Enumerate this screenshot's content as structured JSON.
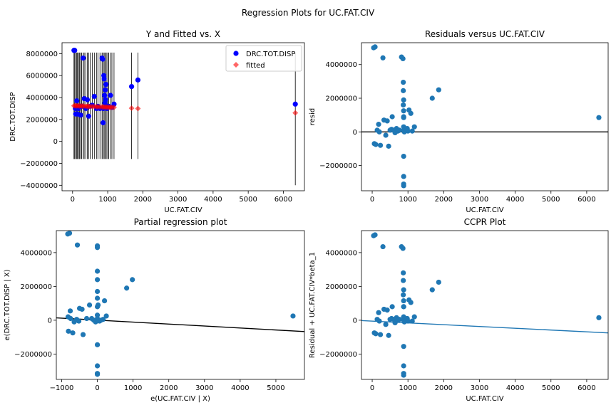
{
  "figure": {
    "suptitle": "Regression Plots for UC.FAT.CIV",
    "colors": {
      "blue": "#1f77b4",
      "pure_blue": "#0000ff",
      "red": "#ff0000",
      "salmon": "#f08080",
      "black": "#000000"
    }
  },
  "chart_data": [
    {
      "id": "yfit",
      "type": "scatter",
      "title": "Y and Fitted vs. X",
      "xlabel": "UC.FAT.CIV",
      "ylabel": "DRC.TOT.DISP",
      "xlim": [
        -300,
        6600
      ],
      "ylim": [
        -4500000,
        9000000
      ],
      "xticks": [
        0,
        1000,
        2000,
        3000,
        4000,
        5000,
        6000
      ],
      "yticks": [
        -4000000,
        -2000000,
        0,
        2000000,
        4000000,
        6000000,
        8000000
      ],
      "legend": {
        "position": "top-right",
        "entries": [
          "DRC.TOT.DISP",
          "fitted"
        ]
      },
      "observed": {
        "name": "DRC.TOT.DISP",
        "x": [
          40,
          60,
          90,
          120,
          80,
          140,
          170,
          200,
          230,
          260,
          300,
          330,
          380,
          420,
          460,
          500,
          560,
          620,
          680,
          720,
          780,
          840,
          860,
          870,
          880,
          890,
          900,
          910,
          920,
          930,
          940,
          950,
          960,
          980,
          1000,
          1030,
          1080,
          1120,
          1180,
          1680,
          1860,
          6340
        ],
        "y": [
          8300000,
          8300000,
          2500000,
          3700000,
          3000000,
          2500000,
          3000000,
          3200000,
          2400000,
          3200000,
          7600000,
          3900000,
          3000000,
          3800000,
          2300000,
          3200000,
          3300000,
          4100000,
          3000000,
          3200000,
          3000000,
          7600000,
          7500000,
          1700000,
          3000000,
          6000000,
          5700000,
          4200000,
          3500000,
          4700000,
          3800000,
          5200000,
          3200000,
          3000000,
          3200000,
          3200000,
          4200000,
          3100000,
          3400000,
          5000000,
          5600000,
          3400000
        ]
      },
      "fitted": {
        "name": "fitted",
        "x": [
          40,
          80,
          120,
          160,
          200,
          240,
          280,
          320,
          380,
          420,
          460,
          500,
          560,
          620,
          680,
          720,
          780,
          840,
          880,
          920,
          960,
          1000,
          1040,
          1080,
          1120,
          1180,
          1680,
          1860,
          6340
        ],
        "y": [
          3250000,
          3250000,
          3240000,
          3240000,
          3230000,
          3230000,
          3220000,
          3220000,
          3210000,
          3200000,
          3200000,
          3190000,
          3180000,
          3180000,
          3170000,
          3160000,
          3150000,
          3140000,
          3140000,
          3130000,
          3130000,
          3120000,
          3110000,
          3110000,
          3100000,
          3100000,
          3030000,
          3000000,
          2600000
        ]
      },
      "intervals": {
        "x": [
          40,
          60,
          90,
          120,
          140,
          170,
          200,
          230,
          260,
          300,
          330,
          380,
          420,
          460,
          500,
          560,
          620,
          680,
          720,
          780,
          840,
          870,
          900,
          930,
          960,
          1000,
          1030,
          1080,
          1120,
          1180,
          1680,
          1860,
          6340
        ],
        "low": -1600000,
        "high": 8100000,
        "low_last": -4000000,
        "high_last": 8100000
      }
    },
    {
      "id": "resid",
      "type": "scatter",
      "title": "Residuals versus UC.FAT.CIV",
      "xlabel": "UC.FAT.CIV",
      "ylabel": "resid",
      "xlim": [
        -300,
        6600
      ],
      "ylim": [
        -3500000,
        5300000
      ],
      "xticks": [
        0,
        1000,
        2000,
        3000,
        4000,
        5000,
        6000
      ],
      "yticks": [
        -2000000,
        0,
        2000000,
        4000000
      ],
      "hline": 0,
      "points": {
        "x": [
          40,
          80,
          60,
          100,
          140,
          180,
          200,
          230,
          300,
          330,
          380,
          420,
          460,
          500,
          540,
          560,
          600,
          640,
          680,
          720,
          760,
          820,
          860,
          870,
          870,
          870,
          880,
          880,
          880,
          880,
          880,
          880,
          880,
          880,
          880,
          880,
          900,
          940,
          980,
          1000,
          1030,
          1080,
          1120,
          1180,
          1680,
          1860,
          6340
        ],
        "y": [
          5000000,
          5050000,
          -700000,
          -750000,
          100000,
          450000,
          0,
          -800000,
          4400000,
          700000,
          -200000,
          650000,
          -850000,
          100000,
          150000,
          900000,
          100000,
          -50000,
          200000,
          50000,
          100000,
          4450000,
          4350000,
          2950000,
          2450000,
          1600000,
          1250000,
          850000,
          300000,
          100000,
          -1450000,
          -2650000,
          -3100000,
          -3200000,
          1900000,
          900000,
          0,
          100000,
          200000,
          50000,
          1300000,
          1100000,
          50000,
          300000,
          2000000,
          2500000,
          850000
        ]
      }
    },
    {
      "id": "partreg",
      "type": "scatter",
      "title": "Partial regression plot",
      "xlabel": "e(UC.FAT.CIV | X)",
      "ylabel": "e(DRC.TOT.DISP | X)",
      "xlim": [
        -1150,
        5800
      ],
      "ylim": [
        -3500000,
        5300000
      ],
      "xticks": [
        -1000,
        0,
        1000,
        2000,
        3000,
        4000,
        5000
      ],
      "yticks": [
        -2000000,
        0,
        2000000,
        4000000
      ],
      "line": {
        "x": [
          -1150,
          5800
        ],
        "y": [
          140000,
          -670000
        ]
      },
      "points": {
        "x": [
          -830,
          -780,
          -810,
          -760,
          -690,
          -560,
          -500,
          -430,
          -400,
          -300,
          -220,
          -160,
          -100,
          -50,
          0,
          0,
          0,
          0,
          0,
          0,
          0,
          0,
          0,
          0,
          0,
          0,
          0,
          0,
          20,
          60,
          100,
          160,
          200,
          250,
          820,
          980,
          5480,
          -820,
          -750,
          -650,
          -580,
          -520
        ],
        "y": [
          5100000,
          5150000,
          -650000,
          550000,
          -750000,
          4450000,
          700000,
          650000,
          -850000,
          100000,
          900000,
          100000,
          0,
          -100000,
          4400000,
          4300000,
          2900000,
          2400000,
          1700000,
          1300000,
          800000,
          300000,
          0,
          -1450000,
          -2700000,
          -3150000,
          -3200000,
          100000,
          900000,
          -50000,
          0,
          50000,
          1150000,
          250000,
          1900000,
          2400000,
          250000,
          200000,
          100000,
          -100000,
          50000,
          -50000
        ]
      }
    },
    {
      "id": "ccpr",
      "type": "scatter",
      "title": "CCPR Plot",
      "xlabel": "UC.FAT.CIV",
      "ylabel": "Residual + UC.FAT.CIV*beta_1",
      "xlim": [
        -300,
        6600
      ],
      "ylim": [
        -3500000,
        5300000
      ],
      "xticks": [
        0,
        1000,
        2000,
        3000,
        4000,
        5000,
        6000
      ],
      "yticks": [
        -2000000,
        0,
        2000000,
        4000000
      ],
      "line": {
        "x": [
          -300,
          6600
        ],
        "y": [
          -20000,
          -750000
        ]
      },
      "points": {
        "x": [
          40,
          80,
          60,
          100,
          140,
          180,
          200,
          230,
          300,
          330,
          380,
          420,
          460,
          500,
          540,
          560,
          600,
          640,
          680,
          720,
          760,
          820,
          860,
          870,
          870,
          870,
          880,
          880,
          880,
          880,
          880,
          880,
          880,
          880,
          880,
          880,
          900,
          940,
          980,
          1000,
          1030,
          1080,
          1120,
          1180,
          1680,
          1860,
          6340
        ],
        "y": [
          5000000,
          5050000,
          -750000,
          -800000,
          50000,
          450000,
          -50000,
          -850000,
          4350000,
          650000,
          -250000,
          600000,
          -900000,
          50000,
          100000,
          800000,
          50000,
          -150000,
          150000,
          0,
          50000,
          4350000,
          4250000,
          2800000,
          2350000,
          1500000,
          1150000,
          800000,
          200000,
          0,
          -1550000,
          -2700000,
          -3150000,
          -3250000,
          1800000,
          800000,
          -100000,
          0,
          100000,
          -50000,
          1200000,
          1050000,
          -50000,
          200000,
          1800000,
          2250000,
          150000
        ]
      }
    }
  ]
}
